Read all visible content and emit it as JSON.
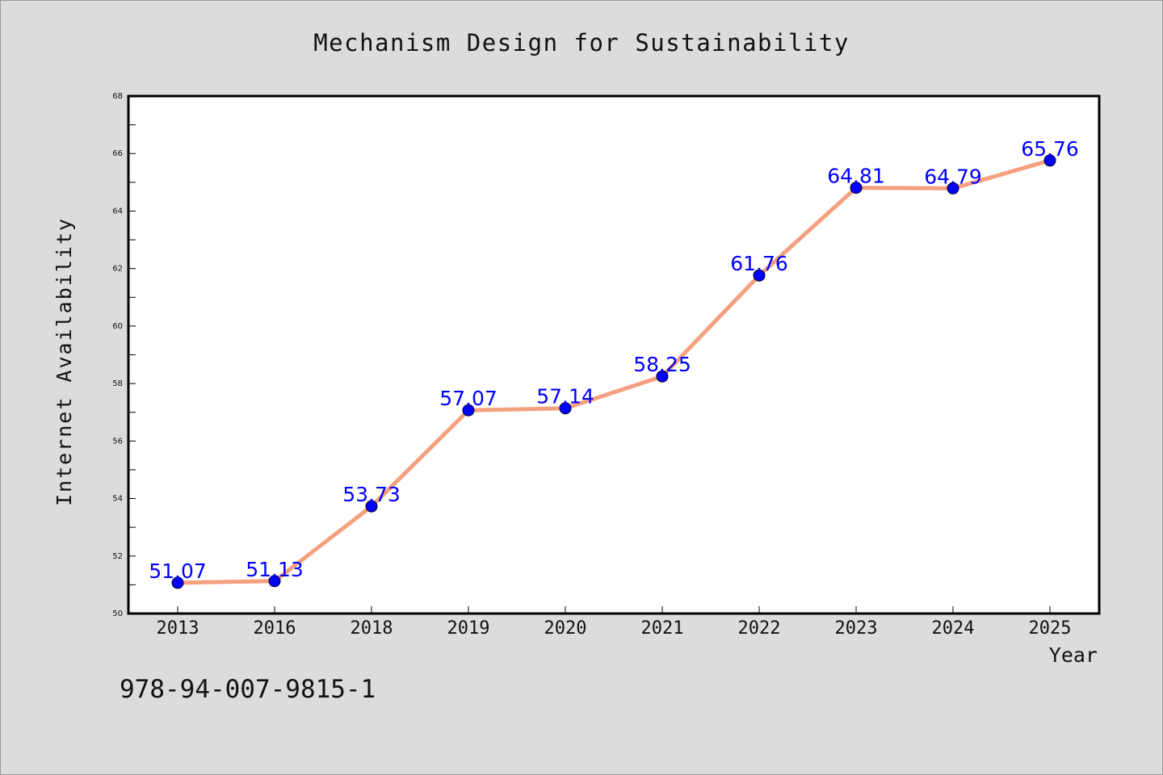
{
  "chart_data": {
    "type": "line",
    "title": "Mechanism Design for Sustainability",
    "xlabel": "Year",
    "ylabel": "Internet Availability",
    "categories": [
      "2013",
      "2016",
      "2018",
      "2019",
      "2020",
      "2021",
      "2022",
      "2023",
      "2024",
      "2025"
    ],
    "values": [
      51.07,
      51.13,
      53.73,
      57.07,
      57.14,
      58.25,
      61.76,
      64.81,
      64.79,
      65.76
    ],
    "data_labels": [
      "51.07",
      "51.13",
      "53.73",
      "57.07",
      "57.14",
      "58.25",
      "61.76",
      "64.81",
      "64.79",
      "65.76"
    ],
    "ylim": [
      50,
      68
    ],
    "yticks": [
      "50",
      "52",
      "54",
      "56",
      "58",
      "60",
      "62",
      "64",
      "66",
      "68"
    ],
    "grid": false,
    "line_color": "#f4a07e",
    "marker_color": "#0000ff",
    "label_color": "#0000ff"
  },
  "footnote": "978-94-007-9815-1"
}
